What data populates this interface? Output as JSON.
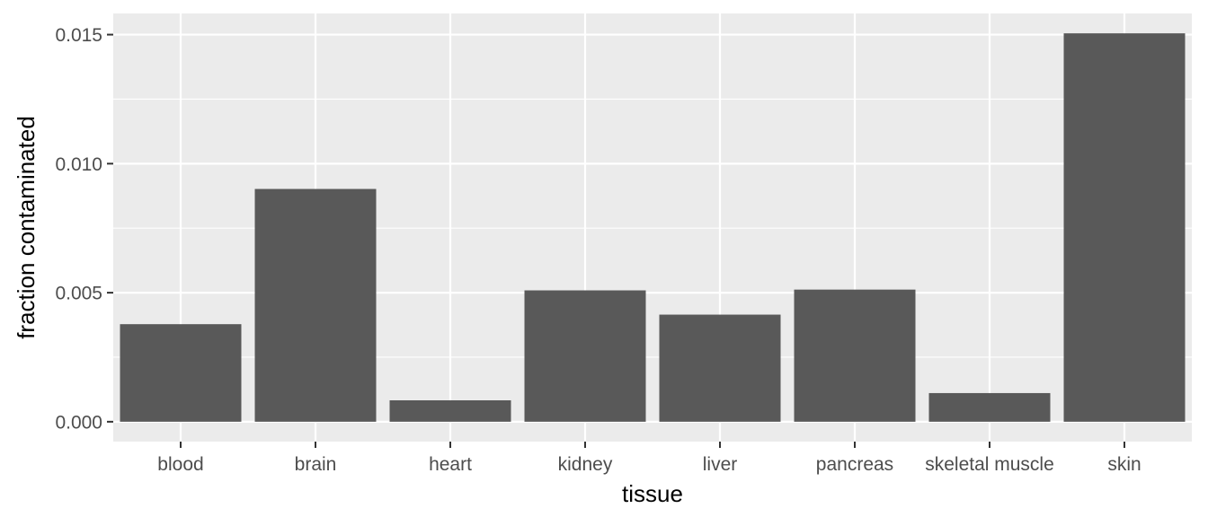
{
  "chart_data": {
    "type": "bar",
    "title": "",
    "xlabel": "tissue",
    "ylabel": "fraction contaminated",
    "categories": [
      "blood",
      "brain",
      "heart",
      "kidney",
      "liver",
      "pancreas",
      "skeletal muscle",
      "skin"
    ],
    "values": [
      0.00378,
      0.00902,
      0.00083,
      0.00509,
      0.00415,
      0.00512,
      0.00111,
      0.01505
    ],
    "ylim": [
      -0.00077,
      0.01582
    ],
    "yticks": [
      0.0,
      0.005,
      0.01,
      0.015
    ],
    "ytick_labels": [
      "0.000",
      "0.005",
      "0.010",
      "0.015"
    ],
    "grid": true,
    "legend": "none",
    "colors": {
      "panel_background": "#ebebeb",
      "grid_line": "#ffffff",
      "bar_fill": "#595959",
      "tick_text": "#4d4d4d",
      "tick_mark": "#333333",
      "title_text": "#000000"
    }
  }
}
